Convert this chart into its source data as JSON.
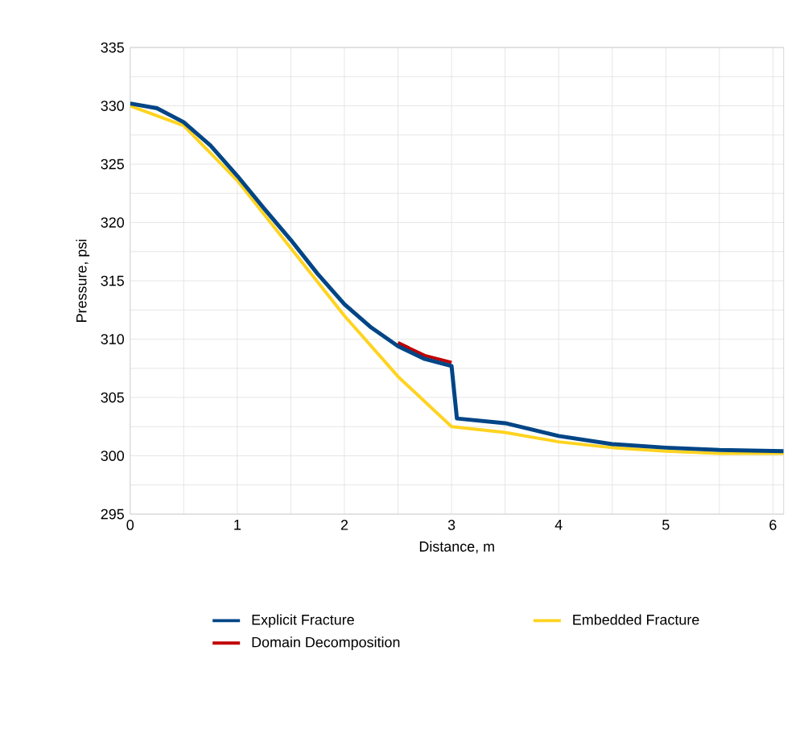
{
  "chart_data": {
    "type": "line",
    "xlabel": "Distance, m",
    "ylabel": "Pressure, psi",
    "xlim": [
      0,
      6.1
    ],
    "ylim": [
      295,
      335
    ],
    "xticks": [
      0,
      1,
      2,
      3,
      4,
      5,
      6
    ],
    "yticks": [
      295,
      300,
      305,
      310,
      315,
      320,
      325,
      330,
      335
    ],
    "grid": true,
    "legend": "bottom",
    "marker": "none",
    "line_style": "solid",
    "series": [
      {
        "name": "Domain Decomposition",
        "color": "#c00000",
        "x": [
          2.5,
          2.75,
          3
        ],
        "values": [
          309.7,
          308.6,
          308.0
        ]
      },
      {
        "name": "Embedded Fracture",
        "color": "#ffd320",
        "x": [
          0,
          0.5,
          1,
          1.5,
          2,
          2.5,
          3,
          3.5,
          4,
          4.5,
          5,
          5.5,
          6.1
        ],
        "values": [
          330,
          328.3,
          323.6,
          317.8,
          312,
          306.8,
          302.5,
          302,
          301.2,
          300.7,
          300.4,
          300.2,
          300.2
        ]
      },
      {
        "name": "Explicit Fracture",
        "color": "#004586",
        "x": [
          0,
          0.25,
          0.5,
          0.75,
          1,
          1.25,
          1.5,
          1.75,
          2,
          2.25,
          2.5,
          2.75,
          3,
          3.05,
          3.5,
          4,
          4.5,
          5,
          5.5,
          6.1
        ],
        "values": [
          330.2,
          329.8,
          328.6,
          326.6,
          324,
          321.2,
          318.5,
          315.6,
          313,
          311,
          309.4,
          308.3,
          307.7,
          303.2,
          302.8,
          301.7,
          301,
          300.7,
          300.5,
          300.4
        ]
      }
    ]
  }
}
